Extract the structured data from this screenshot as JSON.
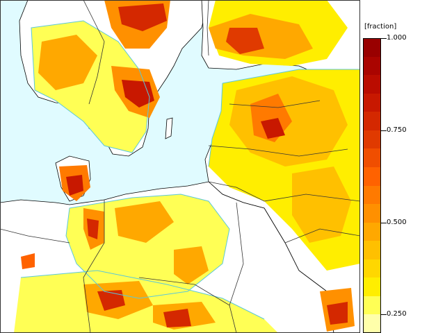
{
  "legend": {
    "unit": "[fraction]",
    "ticks": [
      {
        "label": "1.000",
        "value": 1.0
      },
      {
        "label": "0.750",
        "value": 0.75
      },
      {
        "label": "0.500",
        "value": 0.5
      },
      {
        "label": "0.250",
        "value": 0.25
      }
    ],
    "levels": [
      {
        "from": 0.2,
        "to": 0.25,
        "color": "#FFFFAA"
      },
      {
        "from": 0.25,
        "to": 0.3,
        "color": "#FFFF55"
      },
      {
        "from": 0.3,
        "to": 0.35,
        "color": "#FFEE00"
      },
      {
        "from": 0.35,
        "to": 0.4,
        "color": "#FFD700"
      },
      {
        "from": 0.4,
        "to": 0.45,
        "color": "#FFC000"
      },
      {
        "from": 0.45,
        "to": 0.5,
        "color": "#FFA800"
      },
      {
        "from": 0.5,
        "to": 0.55,
        "color": "#FF9000"
      },
      {
        "from": 0.55,
        "to": 0.6,
        "color": "#FF7A00"
      },
      {
        "from": 0.6,
        "to": 0.65,
        "color": "#FF6200"
      },
      {
        "from": 0.65,
        "to": 0.7,
        "color": "#F04E00"
      },
      {
        "from": 0.7,
        "to": 0.75,
        "color": "#E03A00"
      },
      {
        "from": 0.75,
        "to": 0.8,
        "color": "#D42800"
      },
      {
        "from": 0.8,
        "to": 0.85,
        "color": "#C81800"
      },
      {
        "from": 0.85,
        "to": 0.9,
        "color": "#BA0C00"
      },
      {
        "from": 0.9,
        "to": 0.95,
        "color": "#AA0400"
      },
      {
        "from": 0.95,
        "to": 1.0,
        "color": "#990000"
      }
    ]
  },
  "map": {
    "colors": {
      "sea": "#E0FBFF",
      "land_low": "#FFFFFF",
      "low_contour": "#5BC8D8",
      "coastline": "#000000",
      "border": "#333333"
    }
  }
}
